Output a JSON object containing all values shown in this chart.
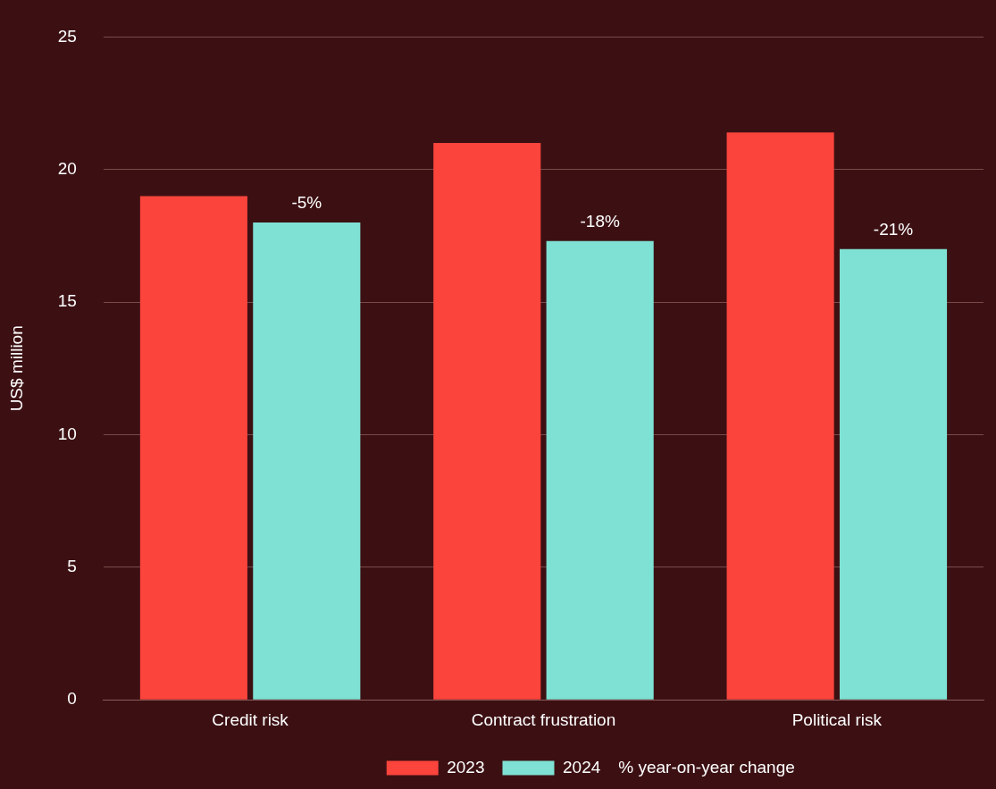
{
  "chart_data": {
    "type": "bar",
    "ylabel": "US$ million",
    "categories": [
      "Credit risk",
      "Contract frustration",
      "Political risk"
    ],
    "series": [
      {
        "name": "2023",
        "color": "#fb443c",
        "values": [
          19,
          21,
          21.4
        ]
      },
      {
        "name": "2024",
        "color": "#7fe1d4",
        "values": [
          18,
          17.3,
          17
        ]
      }
    ],
    "ylim": [
      0,
      25
    ],
    "yticks": [
      0,
      5,
      10,
      15,
      20,
      25
    ],
    "grid": "y",
    "legend": "bottom",
    "annotations": [
      {
        "text": "-5%",
        "x": "Credit risk",
        "y": 18
      },
      {
        "text": "-18%",
        "x": "Contract frustration",
        "y": 17.3
      },
      {
        "text": "-21%",
        "x": "Political risk",
        "y": 17
      },
      "% year-on-year change"
    ]
  }
}
